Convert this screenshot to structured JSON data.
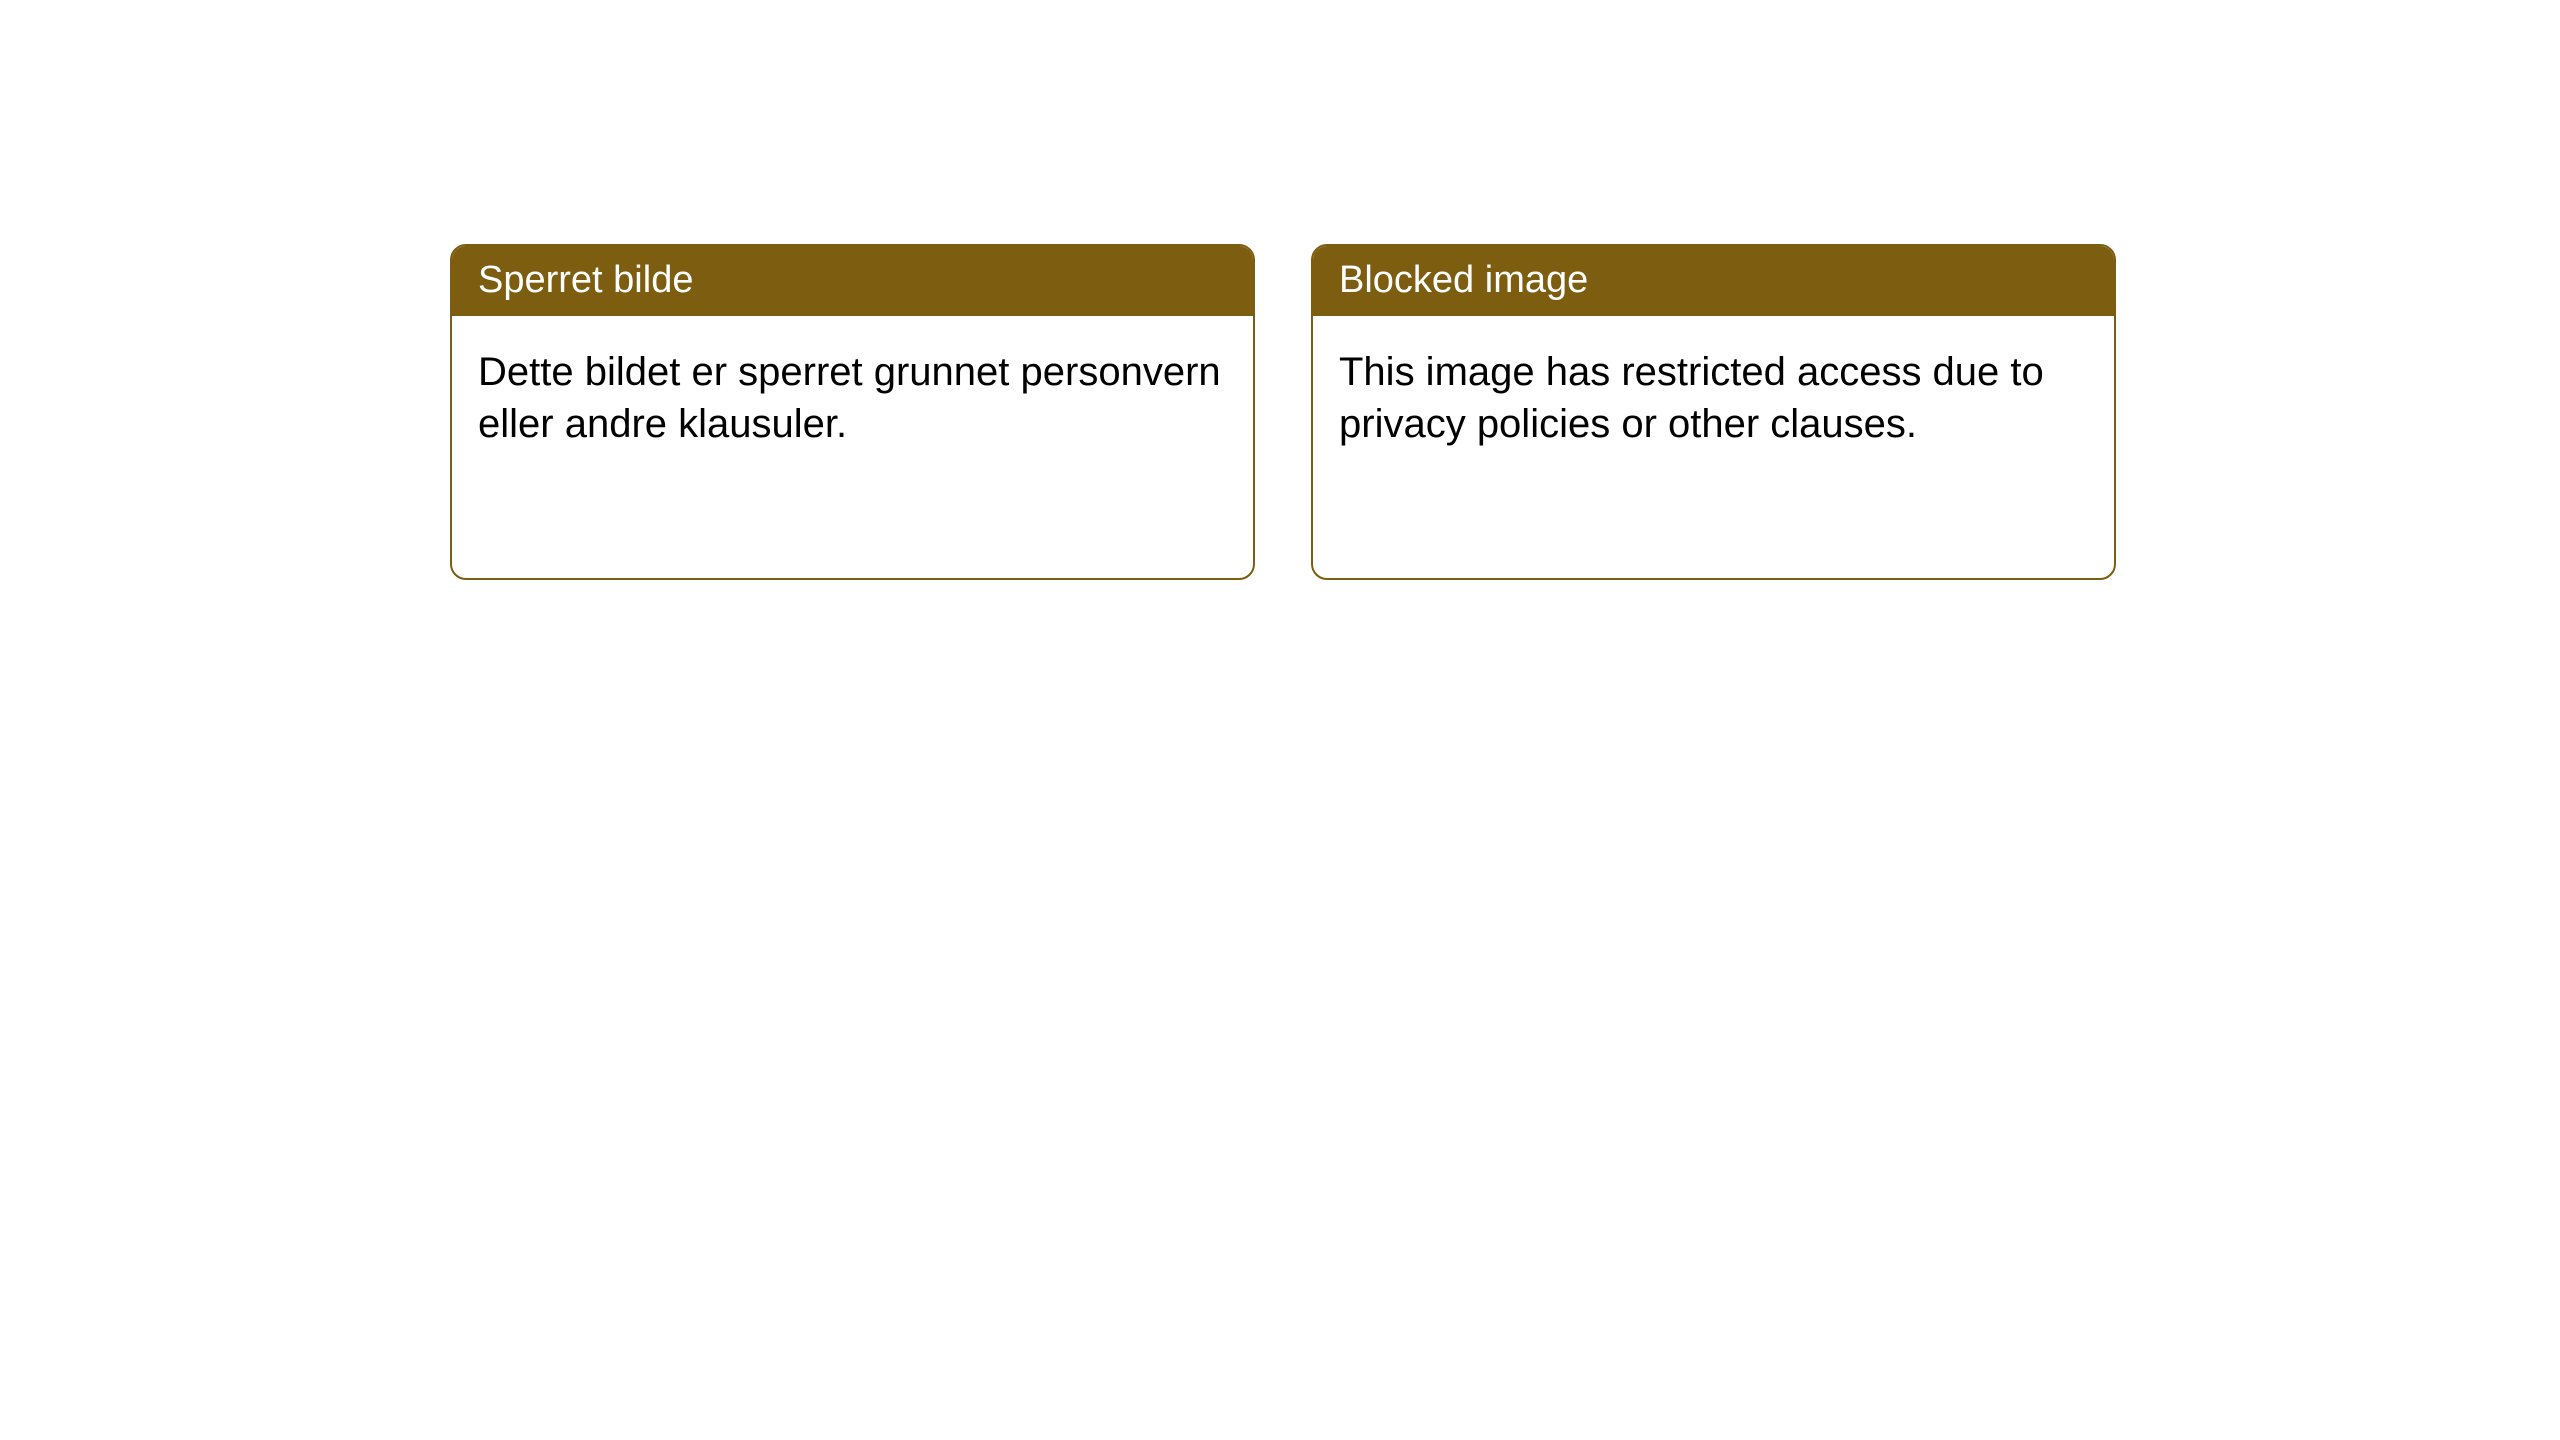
{
  "cards": [
    {
      "title": "Sperret bilde",
      "body": "Dette bildet er sperret grunnet personvern eller andre klausuler."
    },
    {
      "title": "Blocked image",
      "body": "This image has restricted access due to privacy policies or other clauses."
    }
  ],
  "style": {
    "header_bg": "#7d5d10",
    "header_text_color": "#ffffff",
    "border_color": "#7d5d10",
    "body_text_color": "#000000",
    "card_bg": "#ffffff",
    "page_bg": "#ffffff",
    "border_radius": 16,
    "title_fontsize": 38,
    "body_fontsize": 40
  }
}
